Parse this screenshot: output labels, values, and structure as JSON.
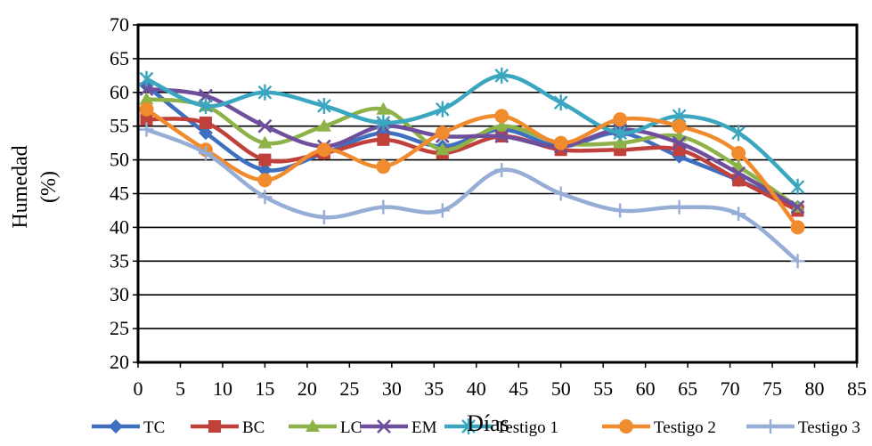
{
  "chart_data": {
    "type": "line",
    "title": "",
    "xlabel": "Días",
    "ylabel_lines": [
      "Humedad",
      "(%)"
    ],
    "xlim": [
      0,
      85
    ],
    "ylim": [
      20,
      70
    ],
    "xticks": [
      0,
      5,
      10,
      15,
      20,
      25,
      30,
      35,
      40,
      45,
      50,
      55,
      60,
      65,
      70,
      75,
      80,
      85
    ],
    "yticks": [
      20,
      25,
      30,
      35,
      40,
      45,
      50,
      55,
      60,
      65,
      70
    ],
    "grid": "horizontal",
    "legend_position": "bottom",
    "x": [
      1,
      8,
      15,
      22,
      29,
      36,
      43,
      50,
      57,
      64,
      71,
      78
    ],
    "series": [
      {
        "name": "TC",
        "color": "#3f6fbf",
        "marker": "diamond",
        "values": [
          61,
          54,
          48.5,
          51,
          54,
          52,
          54.5,
          52,
          54,
          50.5,
          47,
          43
        ]
      },
      {
        "name": "BC",
        "color": "#c0413b",
        "marker": "square",
        "values": [
          56,
          55.5,
          50,
          51,
          53,
          51,
          53.5,
          51.5,
          51.5,
          51.5,
          47,
          42.5
        ]
      },
      {
        "name": "LC",
        "color": "#8db248",
        "marker": "triangle",
        "values": [
          59,
          58,
          52.5,
          55,
          57.5,
          51.5,
          55,
          52.5,
          52.5,
          53.5,
          49,
          43
        ]
      },
      {
        "name": "EM",
        "color": "#6f4e9c",
        "marker": "x",
        "values": [
          60.5,
          59.5,
          55,
          52,
          55,
          53.5,
          53.5,
          52,
          54.5,
          52.5,
          48,
          43
        ]
      },
      {
        "name": "Testigo 1",
        "color": "#3aa6c0",
        "marker": "asterisk",
        "values": [
          62,
          58,
          60,
          58,
          55.5,
          57.5,
          62.5,
          58.5,
          54,
          56.5,
          54,
          46
        ]
      },
      {
        "name": "Testigo 2",
        "color": "#f08c2e",
        "marker": "circle",
        "values": [
          57.5,
          51.5,
          47,
          51.5,
          49,
          54,
          56.5,
          52.5,
          56,
          55,
          51,
          40
        ]
      },
      {
        "name": "Testigo 3",
        "color": "#96aed6",
        "marker": "plus",
        "values": [
          54.5,
          51,
          44.5,
          41.5,
          43,
          42.5,
          48.5,
          45,
          42.5,
          43,
          42,
          35
        ]
      }
    ]
  }
}
